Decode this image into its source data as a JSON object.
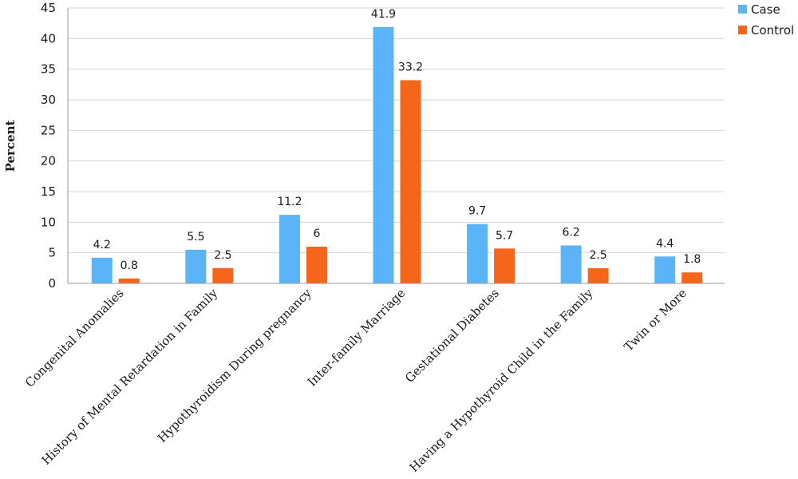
{
  "chart_data": {
    "type": "bar",
    "title": "",
    "xlabel": "",
    "ylabel": "Percent",
    "ylim": [
      0,
      45
    ],
    "yticks": [
      0,
      5,
      10,
      15,
      20,
      25,
      30,
      35,
      40,
      45
    ],
    "grid": true,
    "legend_position": "top-right",
    "categories": [
      "Congenital Anomalies",
      "History of Mental Retardation in Family",
      "Hypothyroidism During pregnancy",
      "Inter-family Marriage",
      "Gestational Diabetes",
      "Having a Hypothyroid Child in the Family",
      "Twin or More"
    ],
    "series": [
      {
        "name": "Case",
        "color": "#5ab4f7",
        "values": [
          4.2,
          5.5,
          11.2,
          41.9,
          9.7,
          6.2,
          4.4
        ]
      },
      {
        "name": "Control",
        "color": "#f7651b",
        "values": [
          0.8,
          2.5,
          6,
          33.2,
          5.7,
          2.5,
          1.8
        ]
      }
    ]
  }
}
